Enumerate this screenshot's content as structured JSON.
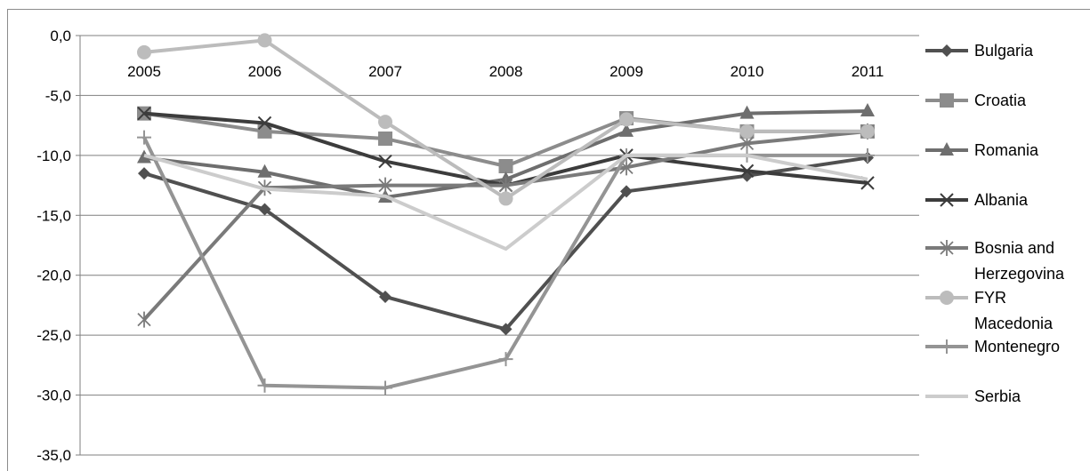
{
  "chart_data": {
    "type": "line",
    "title": "",
    "xlabel": "",
    "ylabel": "",
    "categories": [
      "2005",
      "2006",
      "2007",
      "2008",
      "2009",
      "2010",
      "2011"
    ],
    "ylim": [
      -35,
      0
    ],
    "y_ticks": [
      0,
      -5,
      -10,
      -15,
      -20,
      -25,
      -30,
      -35
    ],
    "y_tick_labels": [
      "0,0",
      "-5,0",
      "-10,0",
      "-15,0",
      "-20,0",
      "-25,0",
      "-30,0",
      "-35,0"
    ],
    "x_tick_position": "top",
    "grid": "horizontal",
    "legend_position": "right",
    "series": [
      {
        "name": "Bulgaria",
        "values": [
          -11.5,
          -14.5,
          -21.8,
          -24.5,
          -13.0,
          -11.7,
          -10.2
        ],
        "color": "#505050",
        "marker": "diamond"
      },
      {
        "name": "Croatia",
        "values": [
          -6.5,
          -8.0,
          -8.6,
          -10.9,
          -6.9,
          -8.0,
          -8.0
        ],
        "color": "#8c8c8c",
        "marker": "square"
      },
      {
        "name": "Romania",
        "values": [
          -10.2,
          -11.4,
          -13.5,
          -12.0,
          -8.0,
          -6.5,
          -6.3
        ],
        "color": "#6e6e6e",
        "marker": "triangle"
      },
      {
        "name": "Albania",
        "values": [
          -6.5,
          -7.3,
          -10.5,
          -12.5,
          -10.0,
          -11.3,
          -12.3
        ],
        "color": "#3c3c3c",
        "marker": "x"
      },
      {
        "name": "Bosnia and Herzegovina",
        "values": [
          -23.7,
          -12.7,
          -12.5,
          -12.5,
          -11.0,
          -9.0,
          -8.0
        ],
        "color": "#7a7a7a",
        "marker": "asterisk"
      },
      {
        "name": "FYR Macedonia",
        "values": [
          -1.4,
          -0.4,
          -7.2,
          -13.6,
          -7.0,
          -8.0,
          -8.0
        ],
        "color": "#bcbcbc",
        "marker": "circle"
      },
      {
        "name": "Montenegro",
        "values": [
          -8.5,
          -29.2,
          -29.4,
          -27.0,
          -10.0,
          -10.0,
          -10.0
        ],
        "color": "#949494",
        "marker": "plus"
      },
      {
        "name": "Serbia",
        "values": [
          -10.0,
          -12.8,
          -13.4,
          -17.8,
          -10.0,
          -10.0,
          -12.0
        ],
        "color": "#cccccc",
        "marker": "none"
      }
    ],
    "legend_entries": [
      {
        "lines": [
          "Bulgaria"
        ]
      },
      {
        "lines": [
          "Croatia"
        ]
      },
      {
        "lines": [
          "Romania"
        ]
      },
      {
        "lines": [
          "Albania"
        ]
      },
      {
        "lines": [
          "Bosnia and",
          "Herzegovina"
        ]
      },
      {
        "lines": [
          "FYR",
          "Macedonia"
        ]
      },
      {
        "lines": [
          "Montenegro"
        ]
      },
      {
        "lines": [
          "Serbia"
        ]
      }
    ]
  }
}
